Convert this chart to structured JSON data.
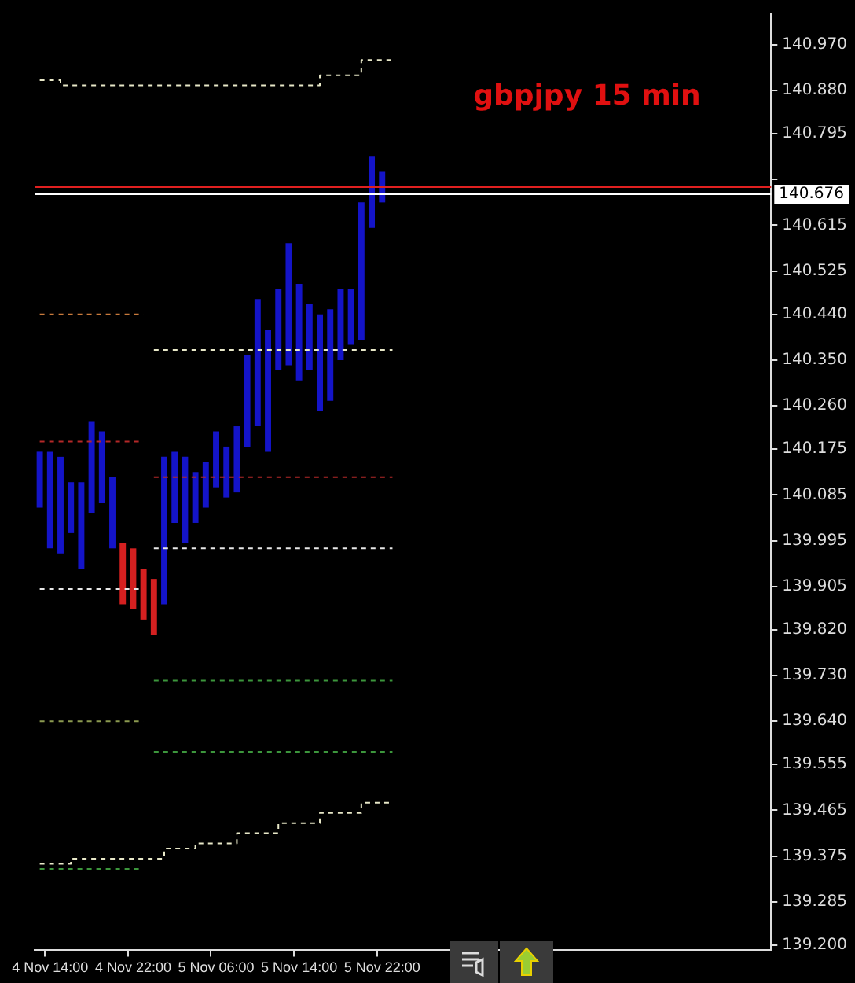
{
  "chart_data": {
    "type": "bar",
    "title": "gbpjpy 15 min",
    "categories": [
      null,
      "4 Nov 14:00",
      null,
      null,
      null,
      null,
      null,
      null,
      null,
      "4 Nov 22:00",
      null,
      null,
      null,
      null,
      null,
      null,
      null,
      "5 Nov 06:00",
      null,
      null,
      null,
      null,
      null,
      null,
      null,
      "5 Nov 14:00",
      null,
      null,
      null,
      null,
      null,
      null,
      null,
      "5 Nov 22:00",
      null,
      null,
      null,
      null,
      null,
      null,
      null,
      null,
      null,
      null,
      null,
      null,
      null,
      null,
      null,
      null,
      null,
      null,
      null,
      null,
      null,
      null,
      null,
      null,
      null,
      null,
      null,
      null,
      null,
      null,
      null,
      null,
      null,
      null,
      null,
      null,
      null
    ],
    "series": [
      {
        "colors": [
          "#1414c8",
          "#1414c8",
          "#1414c8",
          "#1414c8",
          "#1414c8",
          "#1414c8",
          "#1414c8",
          "#1414c8",
          "#d42020",
          "#d42020",
          "#d42020",
          "#d42020",
          "#1414c8",
          "#1414c8",
          "#1414c8",
          "#1414c8",
          "#1414c8",
          "#1414c8",
          "#1414c8",
          "#1414c8",
          "#1414c8",
          "#1414c8",
          "#1414c8",
          "#1414c8",
          "#1414c8",
          "#1414c8",
          "#1414c8",
          "#1414c8",
          "#1414c8",
          "#1414c8",
          "#1414c8",
          "#1414c8",
          "#1414c8",
          "#1414c8",
          "#1414c8",
          "#1414c8",
          "#1414c8",
          "#1414c8",
          "#1414c8",
          "#1414c8",
          "#1414c8",
          "#1414c8",
          "#1414c8",
          "#1414c8",
          "#1414c8",
          "#1414c8",
          "#1414c8",
          "#1414c8",
          "#1414c8",
          "#1414c8",
          "#1414c8",
          "#1414c8",
          "#1414c8",
          "#1414c8",
          "#1414c8",
          "#1414c8",
          "#1414c8",
          "#1414c8",
          "#1414c8",
          "#1414c8",
          "#1414c8",
          "#1414c8",
          "#1414c8",
          "#1414c8",
          "#1414c8",
          "#1414c8",
          "#1414c8",
          "#1414c8",
          "#1414c8",
          "#1414c8",
          "#1414c8"
        ],
        "base": [
          140.06,
          139.98,
          139.97,
          140.01,
          139.94,
          140.05,
          140.07,
          139.98,
          139.87,
          139.86,
          139.84,
          139.81,
          139.87,
          140.03,
          139.99,
          140.03,
          140.06,
          140.1,
          140.08,
          140.09,
          140.18,
          140.22,
          140.17,
          140.33,
          140.34,
          140.31,
          140.33,
          140.25,
          140.27,
          140.35,
          140.38,
          140.39,
          140.61,
          140.66,
          null,
          null,
          null,
          null,
          null,
          null,
          null,
          null,
          null,
          null,
          null,
          null,
          null,
          null,
          null,
          null,
          null,
          null,
          null,
          null,
          null,
          null,
          null,
          null,
          null,
          null,
          null,
          null,
          null,
          null,
          null,
          null,
          null,
          null,
          null,
          null,
          null
        ],
        "values": [
          0.11,
          0.19,
          0.19,
          0.1,
          0.17,
          0.18,
          0.14,
          0.14,
          0.12,
          0.12,
          0.1,
          0.11,
          0.29,
          0.14,
          0.17,
          0.1,
          0.09,
          0.11,
          0.1,
          0.13,
          0.18,
          0.25,
          0.24,
          0.16,
          0.24,
          0.19,
          0.13,
          0.19,
          0.18,
          0.14,
          0.11,
          0.27,
          0.14,
          0.06,
          null,
          null,
          null,
          null,
          null,
          null,
          null,
          null,
          null,
          null,
          null,
          null,
          null,
          null,
          null,
          null,
          null,
          null,
          null,
          null,
          null,
          null,
          null,
          null,
          null,
          null,
          null,
          null,
          null,
          null,
          null,
          null,
          null,
          null,
          null,
          null,
          null
        ]
      },
      {
        "type": "step",
        "color": "#e8e8c8",
        "line_style": "dashed",
        "values": [
          140.9,
          140.9,
          140.89,
          140.89,
          140.89,
          140.89,
          140.89,
          140.89,
          140.89,
          140.89,
          140.89,
          140.89,
          140.89,
          140.89,
          140.89,
          140.89,
          140.89,
          140.89,
          140.89,
          140.89,
          140.89,
          140.89,
          140.89,
          140.89,
          140.89,
          140.89,
          140.89,
          140.91,
          140.91,
          140.91,
          140.91,
          140.94,
          140.94,
          140.94,
          140.94,
          null,
          null,
          null,
          null,
          null,
          null,
          null,
          null,
          null,
          null,
          null,
          null,
          null,
          null,
          null,
          null,
          null,
          null,
          null,
          null,
          null,
          null,
          null,
          null,
          null,
          null,
          null,
          null,
          null,
          null,
          null,
          null,
          null,
          null,
          null,
          null
        ]
      },
      {
        "type": "step",
        "color": "#e8e8c8",
        "line_style": "dashed",
        "values": [
          139.36,
          139.36,
          139.36,
          139.37,
          139.37,
          139.37,
          139.37,
          139.37,
          139.37,
          139.37,
          139.37,
          139.37,
          139.39,
          139.39,
          139.39,
          139.4,
          139.4,
          139.4,
          139.4,
          139.42,
          139.42,
          139.42,
          139.42,
          139.44,
          139.44,
          139.44,
          139.44,
          139.46,
          139.46,
          139.46,
          139.46,
          139.48,
          139.48,
          139.48,
          139.48,
          null,
          null,
          null,
          null,
          null,
          null,
          null,
          null,
          null,
          null,
          null,
          null,
          null,
          null,
          null,
          null,
          null,
          null,
          null,
          null,
          null,
          null,
          null,
          null,
          null,
          null,
          null,
          null,
          null,
          null,
          null,
          null,
          null,
          null,
          null,
          null
        ]
      },
      {
        "type": "line",
        "color": "#c87a3c",
        "line_style": "dashed",
        "values": [
          140.44,
          140.44,
          140.44,
          140.44,
          140.44,
          140.44,
          140.44,
          140.44,
          140.44,
          140.44,
          140.44,
          null,
          null,
          null,
          null,
          null,
          null,
          null,
          null,
          null,
          null,
          null,
          null,
          null,
          null,
          null,
          null,
          null,
          null,
          null,
          null,
          null,
          null,
          null,
          null,
          null,
          null,
          null,
          null,
          null,
          null,
          null,
          null,
          null,
          null,
          null,
          null,
          null,
          null,
          null,
          null,
          null,
          null,
          null,
          null,
          null,
          null,
          null,
          null,
          null,
          null,
          null,
          null,
          null,
          null,
          null,
          null,
          null,
          null,
          null,
          null
        ]
      },
      {
        "type": "line",
        "color": "#b42828",
        "line_style": "dashed",
        "values": [
          140.19,
          140.19,
          140.19,
          140.19,
          140.19,
          140.19,
          140.19,
          140.19,
          140.19,
          140.19,
          140.19,
          null,
          null,
          null,
          null,
          null,
          null,
          null,
          null,
          null,
          null,
          null,
          null,
          null,
          null,
          null,
          null,
          null,
          null,
          null,
          null,
          null,
          null,
          null,
          null,
          null,
          null,
          null,
          null,
          null,
          null,
          null,
          null,
          null,
          null,
          null,
          null,
          null,
          null,
          null,
          null,
          null,
          null,
          null,
          null,
          null,
          null,
          null,
          null,
          null,
          null,
          null,
          null,
          null,
          null,
          null,
          null,
          null,
          null,
          null,
          null
        ]
      },
      {
        "type": "line",
        "color": "#e8e8e8",
        "line_style": "dashed",
        "values": [
          139.9,
          139.9,
          139.9,
          139.9,
          139.9,
          139.9,
          139.9,
          139.9,
          139.9,
          139.9,
          139.9,
          null,
          null,
          null,
          null,
          null,
          null,
          null,
          null,
          null,
          null,
          null,
          null,
          null,
          null,
          null,
          null,
          null,
          null,
          null,
          null,
          null,
          null,
          null,
          null,
          null,
          null,
          null,
          null,
          null,
          null,
          null,
          null,
          null,
          null,
          null,
          null,
          null,
          null,
          null,
          null,
          null,
          null,
          null,
          null,
          null,
          null,
          null,
          null,
          null,
          null,
          null,
          null,
          null,
          null,
          null,
          null,
          null,
          null,
          null,
          null
        ]
      },
      {
        "type": "line",
        "color": "#8c9a50",
        "line_style": "dashed",
        "values": [
          139.64,
          139.64,
          139.64,
          139.64,
          139.64,
          139.64,
          139.64,
          139.64,
          139.64,
          139.64,
          139.64,
          null,
          null,
          null,
          null,
          null,
          null,
          null,
          null,
          null,
          null,
          null,
          null,
          null,
          null,
          null,
          null,
          null,
          null,
          null,
          null,
          null,
          null,
          null,
          null,
          null,
          null,
          null,
          null,
          null,
          null,
          null,
          null,
          null,
          null,
          null,
          null,
          null,
          null,
          null,
          null,
          null,
          null,
          null,
          null,
          null,
          null,
          null,
          null,
          null,
          null,
          null,
          null,
          null,
          null,
          null,
          null,
          null,
          null,
          null,
          null
        ]
      },
      {
        "type": "line",
        "color": "#3c963c",
        "line_style": "dashed",
        "values": [
          139.35,
          139.35,
          139.35,
          139.35,
          139.35,
          139.35,
          139.35,
          139.35,
          139.35,
          139.35,
          139.35,
          null,
          null,
          null,
          null,
          null,
          null,
          null,
          null,
          null,
          null,
          null,
          null,
          null,
          null,
          null,
          null,
          null,
          null,
          null,
          null,
          null,
          null,
          null,
          null,
          null,
          null,
          null,
          null,
          null,
          null,
          null,
          null,
          null,
          null,
          null,
          null,
          null,
          null,
          null,
          null,
          null,
          null,
          null,
          null,
          null,
          null,
          null,
          null,
          null,
          null,
          null,
          null,
          null,
          null,
          null,
          null,
          null,
          null,
          null,
          null
        ]
      },
      {
        "type": "line",
        "color": "#e8e8c8",
        "line_style": "dashed",
        "values": [
          null,
          null,
          null,
          null,
          null,
          null,
          null,
          null,
          null,
          null,
          null,
          140.37,
          140.37,
          140.37,
          140.37,
          140.37,
          140.37,
          140.37,
          140.37,
          140.37,
          140.37,
          140.37,
          140.37,
          140.37,
          140.37,
          140.37,
          140.37,
          140.37,
          140.37,
          140.37,
          140.37,
          140.37,
          140.37,
          140.37,
          140.37,
          null,
          null,
          null,
          null,
          null,
          null,
          null,
          null,
          null,
          null,
          null,
          null,
          null,
          null,
          null,
          null,
          null,
          null,
          null,
          null,
          null,
          null,
          null,
          null,
          null,
          null,
          null,
          null,
          null,
          null,
          null,
          null,
          null,
          null,
          null,
          null
        ]
      },
      {
        "type": "line",
        "color": "#b42828",
        "line_style": "dashed",
        "values": [
          null,
          null,
          null,
          null,
          null,
          null,
          null,
          null,
          null,
          null,
          null,
          140.12,
          140.12,
          140.12,
          140.12,
          140.12,
          140.12,
          140.12,
          140.12,
          140.12,
          140.12,
          140.12,
          140.12,
          140.12,
          140.12,
          140.12,
          140.12,
          140.12,
          140.12,
          140.12,
          140.12,
          140.12,
          140.12,
          140.12,
          140.12,
          null,
          null,
          null,
          null,
          null,
          null,
          null,
          null,
          null,
          null,
          null,
          null,
          null,
          null,
          null,
          null,
          null,
          null,
          null,
          null,
          null,
          null,
          null,
          null,
          null,
          null,
          null,
          null,
          null,
          null,
          null,
          null,
          null,
          null,
          null,
          null
        ]
      },
      {
        "type": "line",
        "color": "#e8e8e8",
        "line_style": "dashed",
        "values": [
          null,
          null,
          null,
          null,
          null,
          null,
          null,
          null,
          null,
          null,
          null,
          139.98,
          139.98,
          139.98,
          139.98,
          139.98,
          139.98,
          139.98,
          139.98,
          139.98,
          139.98,
          139.98,
          139.98,
          139.98,
          139.98,
          139.98,
          139.98,
          139.98,
          139.98,
          139.98,
          139.98,
          139.98,
          139.98,
          139.98,
          139.98,
          null,
          null,
          null,
          null,
          null,
          null,
          null,
          null,
          null,
          null,
          null,
          null,
          null,
          null,
          null,
          null,
          null,
          null,
          null,
          null,
          null,
          null,
          null,
          null,
          null,
          null,
          null,
          null,
          null,
          null,
          null,
          null,
          null,
          null,
          null,
          null
        ]
      },
      {
        "type": "line",
        "color": "#3c963c",
        "line_style": "dashed",
        "values": [
          null,
          null,
          null,
          null,
          null,
          null,
          null,
          null,
          null,
          null,
          null,
          139.72,
          139.72,
          139.72,
          139.72,
          139.72,
          139.72,
          139.72,
          139.72,
          139.72,
          139.72,
          139.72,
          139.72,
          139.72,
          139.72,
          139.72,
          139.72,
          139.72,
          139.72,
          139.72,
          139.72,
          139.72,
          139.72,
          139.72,
          139.72,
          null,
          null,
          null,
          null,
          null,
          null,
          null,
          null,
          null,
          null,
          null,
          null,
          null,
          null,
          null,
          null,
          null,
          null,
          null,
          null,
          null,
          null,
          null,
          null,
          null,
          null,
          null,
          null,
          null,
          null,
          null,
          null,
          null,
          null,
          null,
          null
        ]
      },
      {
        "type": "line",
        "color": "#3c963c",
        "line_style": "dashed",
        "values": [
          null,
          null,
          null,
          null,
          null,
          null,
          null,
          null,
          null,
          null,
          null,
          139.58,
          139.58,
          139.58,
          139.58,
          139.58,
          139.58,
          139.58,
          139.58,
          139.58,
          139.58,
          139.58,
          139.58,
          139.58,
          139.58,
          139.58,
          139.58,
          139.58,
          139.58,
          139.58,
          139.58,
          139.58,
          139.58,
          139.58,
          139.58,
          null,
          null,
          null,
          null,
          null,
          null,
          null,
          null,
          null,
          null,
          null,
          null,
          null,
          null,
          null,
          null,
          null,
          null,
          null,
          null,
          null,
          null,
          null,
          null,
          null,
          null,
          null,
          null,
          null,
          null,
          null,
          null,
          null,
          null,
          null,
          null
        ]
      }
    ],
    "ylim": [
      139.19,
      141.03
    ],
    "yticks": [
      {
        "value": 140.97,
        "label": "140.970"
      },
      {
        "value": 140.88,
        "label": "140.880"
      },
      {
        "value": 140.795,
        "label": "140.795"
      },
      {
        "value": 140.705,
        "label": null
      },
      {
        "value": 140.615,
        "label": "140.615"
      },
      {
        "value": 140.525,
        "label": "140.525"
      },
      {
        "value": 140.44,
        "label": "140.440"
      },
      {
        "value": 140.35,
        "label": "140.350"
      },
      {
        "value": 140.26,
        "label": "140.260"
      },
      {
        "value": 140.175,
        "label": "140.175"
      },
      {
        "value": 140.085,
        "label": "140.085"
      },
      {
        "value": 139.995,
        "label": "139.995"
      },
      {
        "value": 139.905,
        "label": "139.905"
      },
      {
        "value": 139.82,
        "label": "139.820"
      },
      {
        "value": 139.73,
        "label": "139.730"
      },
      {
        "value": 139.64,
        "label": "139.640"
      },
      {
        "value": 139.555,
        "label": "139.555"
      },
      {
        "value": 139.465,
        "label": "139.465"
      },
      {
        "value": 139.375,
        "label": "139.375"
      },
      {
        "value": 139.285,
        "label": "139.285"
      },
      {
        "value": 139.2,
        "label": "139.200"
      }
    ],
    "ref_lines": [
      {
        "axis": "y",
        "value": 140.69,
        "color": "#e02020",
        "line_style": "solid"
      },
      {
        "axis": "y",
        "value": 140.676,
        "label": "140.676",
        "color": "#ffffff",
        "line_style": "solid"
      }
    ],
    "grid": false,
    "legend": false,
    "marker": "none"
  }
}
